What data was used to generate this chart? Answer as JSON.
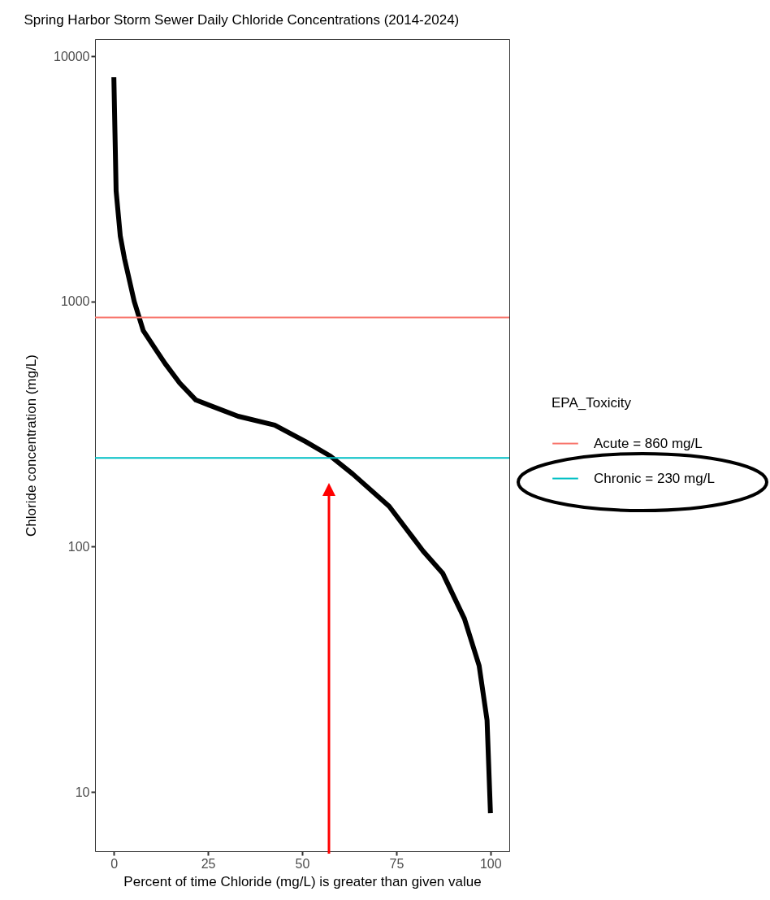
{
  "chart_data": {
    "type": "line",
    "title": "Spring Harbor Storm Sewer  Daily Chloride Concentrations (2014-2024)",
    "xlabel": "Percent of time Chloride (mg/L) is greater than given value",
    "ylabel": "Chloride concentration (mg/L)",
    "legend_title": "EPA_Toxicity",
    "x": [
      0,
      0.6,
      1.7,
      2.8,
      5.4,
      7.8,
      11.4,
      13.6,
      17.5,
      21.8,
      33,
      42.7,
      50.9,
      57.5,
      63.4,
      73.1,
      82.1,
      87.3,
      93.1,
      97,
      99.1,
      100
    ],
    "series": [
      {
        "color": "#000000",
        "values": [
          8200,
          2820,
          1850,
          1500,
          1000,
          760,
          627,
          558,
          464,
          396,
          340,
          313,
          268,
          234,
          198,
          146,
          96,
          78,
          50.8,
          32.7,
          19.6,
          8.2
        ]
      }
    ],
    "xlim": [
      -5,
      105
    ],
    "xticks": [
      0,
      25,
      50,
      75,
      100
    ],
    "ylim": [
      5.73,
      11740
    ],
    "yticks": [
      10,
      100,
      1000,
      10000
    ],
    "log": "y",
    "grid": false,
    "legend": "right",
    "ref_lines": [
      {
        "axis": "y",
        "value": 860,
        "label": "Acute = 860 mg/L",
        "color": "#f8766d"
      },
      {
        "axis": "y",
        "value": 230,
        "label": "Chronic = 230 mg/L",
        "color": "#00bfc4"
      }
    ]
  }
}
